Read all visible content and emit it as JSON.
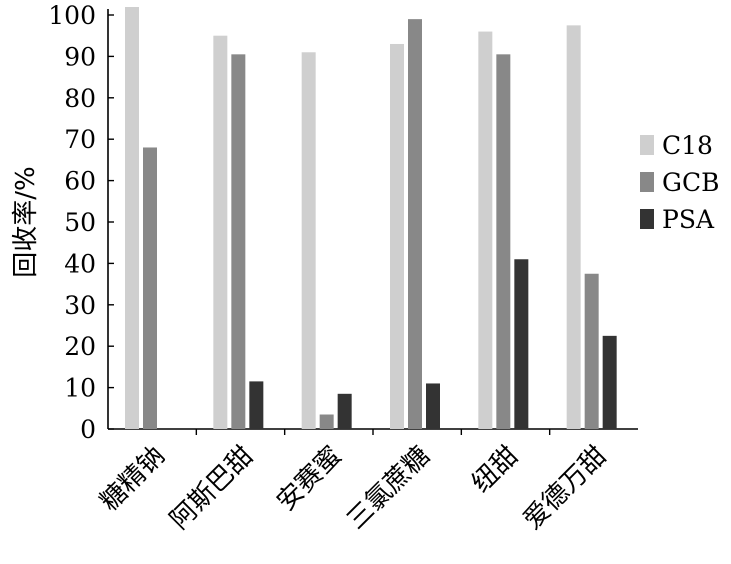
{
  "chart_data": {
    "type": "bar",
    "ylabel": "回收率/%",
    "xlabel": "",
    "ylim": [
      0,
      100
    ],
    "yticks": [
      0,
      10,
      20,
      30,
      40,
      50,
      60,
      70,
      80,
      90,
      100
    ],
    "categories": [
      "糖精钠",
      "阿斯巴甜",
      "安赛蜜",
      "三氯蔗糖",
      "纽甜",
      "爱德万甜"
    ],
    "series": [
      {
        "name": "C18",
        "color": "#cfcfcf",
        "values": [
          102,
          95,
          91,
          93,
          96,
          97.5
        ]
      },
      {
        "name": "GCB",
        "color": "#888888",
        "values": [
          68,
          90.5,
          3.5,
          99,
          90.5,
          37.5
        ]
      },
      {
        "name": "PSA",
        "color": "#333333",
        "values": [
          0,
          11.5,
          8.5,
          11,
          41,
          22.5
        ]
      }
    ],
    "legend": "right",
    "grid": false
  }
}
